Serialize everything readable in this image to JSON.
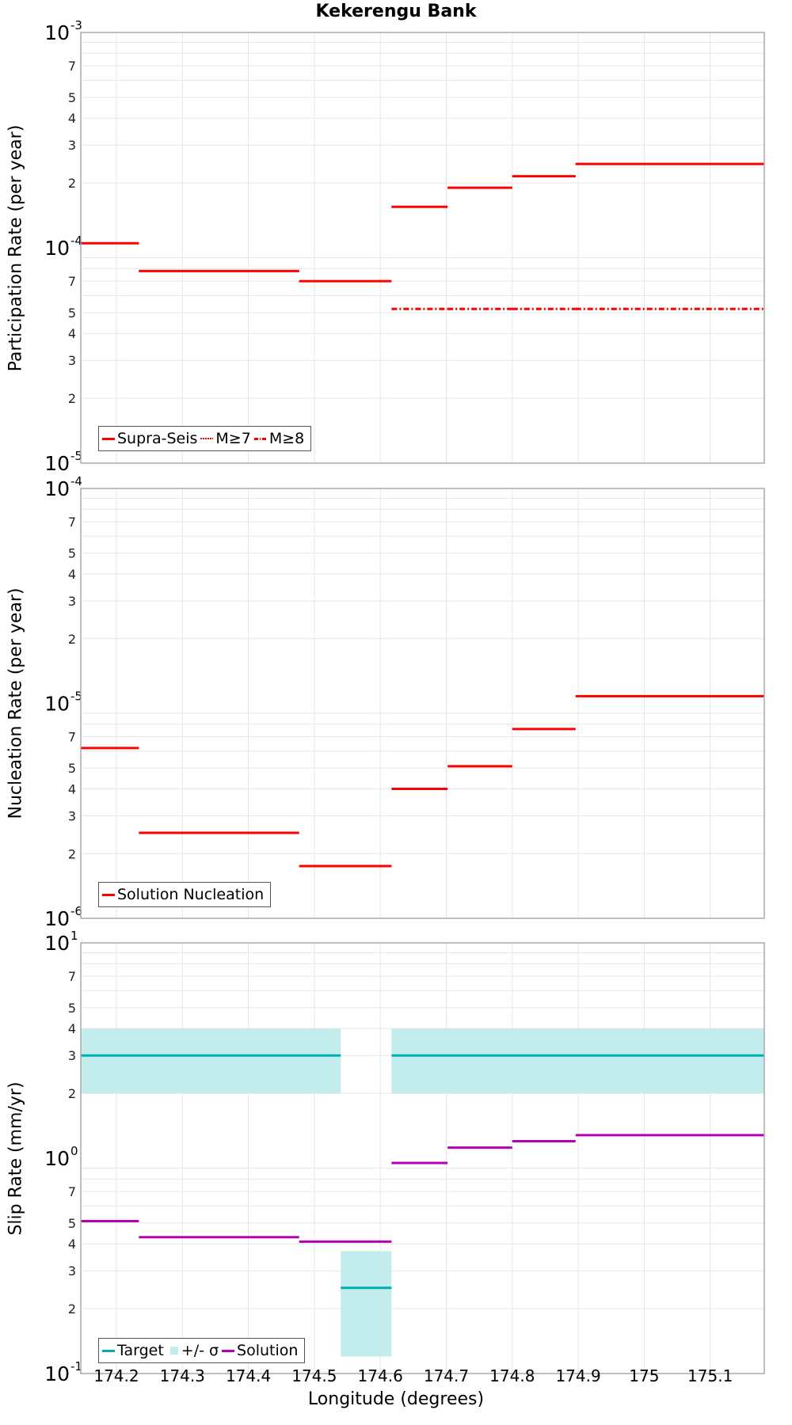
{
  "title": "Kekerengu Bank",
  "xlabel": "Longitude (degrees)",
  "x_ticks": [
    "174.2",
    "174.3",
    "174.4",
    "174.5",
    "174.6",
    "174.7",
    "174.8",
    "174.9",
    "175",
    "175.1"
  ],
  "colors": {
    "red": "#ff0000",
    "cyan": "#00b0b0",
    "band": "#c3ecec",
    "magenta": "#b400b4",
    "grid": "#e6e6e6",
    "frame": "#aaaaaa"
  },
  "chart_data": [
    {
      "type": "line",
      "title": "Kekerengu Bank",
      "xlabel": "Longitude (degrees)",
      "ylabel": "Participation Rate (per year)",
      "yscale": "log",
      "ylim": [
        1e-05,
        0.001
      ],
      "xlim": [
        174.146,
        175.182
      ],
      "legend": [
        "Supra-Seis",
        "M≥7",
        "M≥8"
      ],
      "legend_position": "lower left",
      "grid": true,
      "segment_edges": [
        174.146,
        174.234,
        174.477,
        174.617,
        174.702,
        174.8,
        174.896,
        175.182
      ],
      "series": [
        {
          "name": "Supra-Seis",
          "style": "solid",
          "values": [
            0.000105,
            7.8e-05,
            7e-05,
            0.000155,
            0.00019,
            0.000215,
            0.000245
          ]
        },
        {
          "name": "M≥7",
          "style": "dotted",
          "values": [
            0.000105,
            7.8e-05,
            7e-05,
            0.000155,
            0.00019,
            0.000215,
            0.000245
          ]
        },
        {
          "name": "M≥8",
          "style": "dashdot",
          "values": [
            null,
            null,
            null,
            5.2e-05,
            5.2e-05,
            5.2e-05,
            5.2e-05
          ]
        }
      ]
    },
    {
      "type": "line",
      "xlabel": "Longitude (degrees)",
      "ylabel": "Nucleation Rate (per year)",
      "yscale": "log",
      "ylim": [
        1e-06,
        0.0001
      ],
      "xlim": [
        174.146,
        175.182
      ],
      "legend": [
        "Solution Nucleation"
      ],
      "legend_position": "lower left",
      "grid": true,
      "segment_edges": [
        174.146,
        174.234,
        174.477,
        174.617,
        174.702,
        174.8,
        174.896,
        175.182
      ],
      "series": [
        {
          "name": "Solution Nucleation",
          "values": [
            6.2e-06,
            2.5e-06,
            1.75e-06,
            4e-06,
            5.1e-06,
            7.6e-06,
            1.08e-05
          ]
        }
      ]
    },
    {
      "type": "line",
      "xlabel": "Longitude (degrees)",
      "ylabel": "Slip Rate (mm/yr)",
      "yscale": "log",
      "ylim": [
        0.1,
        10
      ],
      "xlim": [
        174.146,
        175.182
      ],
      "legend": [
        "Target",
        "+/- σ",
        "Solution"
      ],
      "legend_position": "lower left",
      "grid": true,
      "series": [
        {
          "name": "Target",
          "segments": [
            {
              "x": [
                174.146,
                174.54
              ],
              "value": 3.0,
              "low": 2.0,
              "high": 4.0
            },
            {
              "x": [
                174.54,
                174.617
              ],
              "value": 0.25,
              "low": 0.12,
              "high": 0.37
            },
            {
              "x": [
                174.617,
                175.182
              ],
              "value": 3.0,
              "low": 2.0,
              "high": 4.0
            }
          ]
        },
        {
          "name": "Solution",
          "segment_edges": [
            174.146,
            174.234,
            174.477,
            174.617,
            174.702,
            174.8,
            174.896,
            175.182
          ],
          "values": [
            0.51,
            0.43,
            0.41,
            0.95,
            1.12,
            1.2,
            1.28
          ]
        }
      ]
    }
  ],
  "panels": [
    {
      "ylabel": "Participation Rate (per year)",
      "top_label": "10",
      "top_exp": "-3",
      "bottom_label": "10",
      "bottom_exp": "-5",
      "mid_label": "10",
      "mid_exp": "-4",
      "legend": {
        "items": [
          "Supra-Seis",
          "M≥7",
          "M≥8"
        ]
      }
    },
    {
      "ylabel": "Nucleation Rate (per year)",
      "top_label": "10",
      "top_exp": "-4",
      "bottom_label": "10",
      "bottom_exp": "-6",
      "mid_label": "10",
      "mid_exp": "-5",
      "legend": {
        "items": [
          "Solution Nucleation"
        ]
      }
    },
    {
      "ylabel": "Slip Rate (mm/yr)",
      "top_label": "10",
      "top_exp": "1",
      "bottom_label": "10",
      "bottom_exp": "-1",
      "mid_label": "10",
      "mid_exp": "0",
      "legend": {
        "items": [
          "Target",
          "+/- σ",
          "Solution"
        ]
      }
    }
  ],
  "minor_tick_labels": [
    "2",
    "3",
    "4",
    "5",
    "7"
  ]
}
